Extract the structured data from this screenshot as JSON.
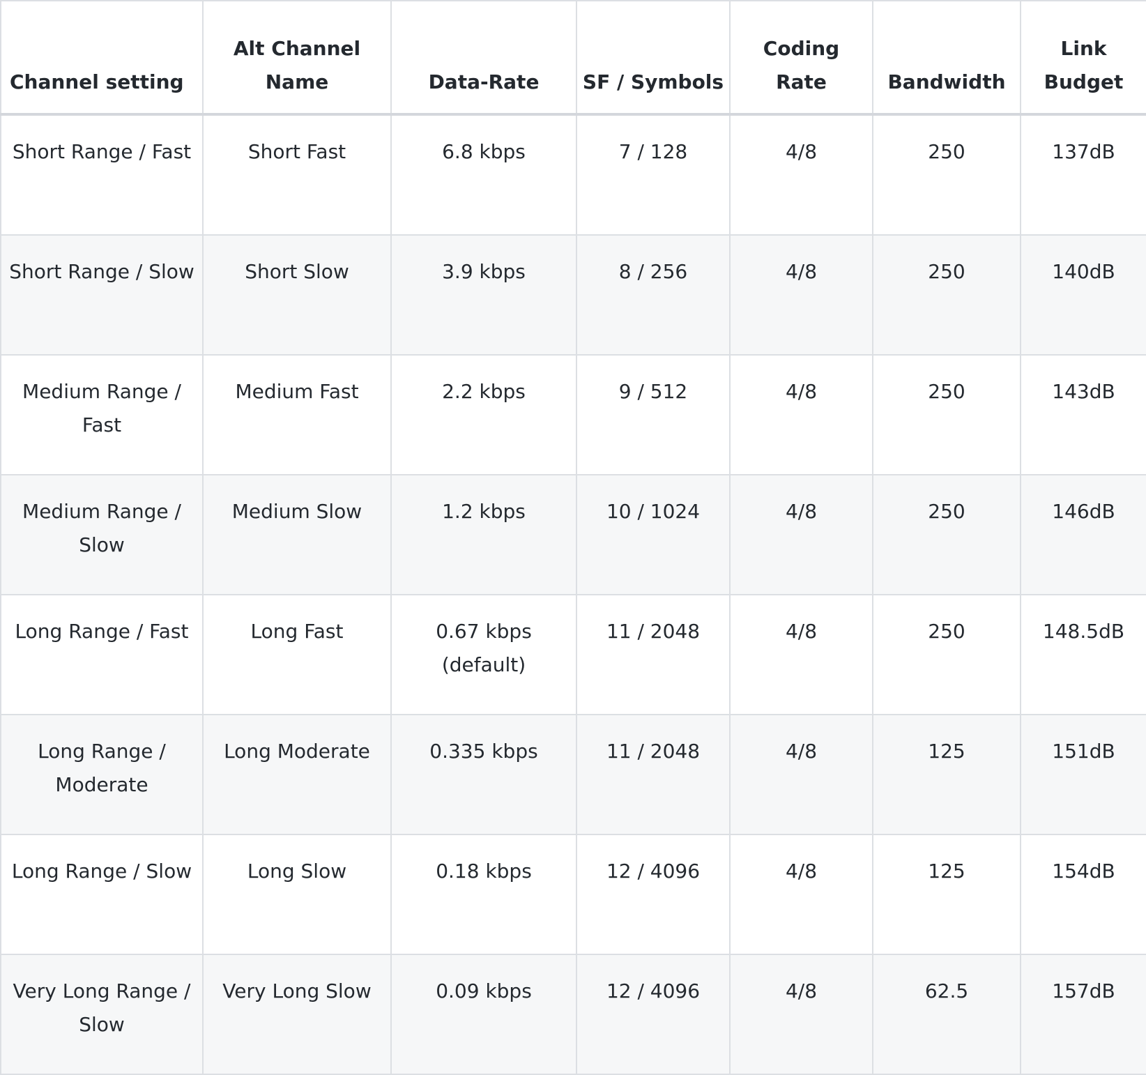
{
  "table": {
    "headers": [
      "Channel setting",
      "Alt Channel Name",
      "Data-Rate",
      "SF / Symbols",
      "Coding Rate",
      "Bandwidth",
      "Link Budget"
    ],
    "rows": [
      [
        "Short Range / Fast",
        "Short Fast",
        "6.8 kbps",
        "7 / 128",
        "4/8",
        "250",
        "137dB"
      ],
      [
        "Short Range / Slow",
        "Short Slow",
        "3.9 kbps",
        "8 / 256",
        "4/8",
        "250",
        "140dB"
      ],
      [
        "Medium Range / Fast",
        "Medium Fast",
        "2.2 kbps",
        "9 / 512",
        "4/8",
        "250",
        "143dB"
      ],
      [
        "Medium Range / Slow",
        "Medium Slow",
        "1.2 kbps",
        "10 / 1024",
        "4/8",
        "250",
        "146dB"
      ],
      [
        "Long Range / Fast",
        "Long Fast",
        "0.67 kbps (default)",
        "11 / 2048",
        "4/8",
        "250",
        "148.5dB"
      ],
      [
        "Long Range / Moderate",
        "Long Moderate",
        "0.335 kbps",
        "11 / 2048",
        "4/8",
        "125",
        "151dB"
      ],
      [
        "Long Range / Slow",
        "Long Slow",
        "0.18 kbps",
        "12 / 4096",
        "4/8",
        "125",
        "154dB"
      ],
      [
        "Very Long Range / Slow",
        "Very Long Slow",
        "0.09 kbps",
        "12 / 4096",
        "4/8",
        "62.5",
        "157dB"
      ]
    ]
  }
}
